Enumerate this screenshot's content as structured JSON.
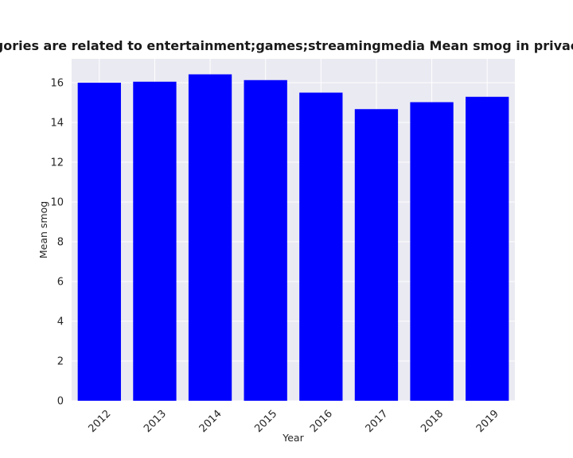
{
  "chart_data": {
    "type": "bar",
    "title": "categories are related to entertainment;games;streamingmedia Mean smog in privacy policies",
    "xlabel": "Year",
    "ylabel": "Mean smog",
    "categories": [
      "2012",
      "2013",
      "2014",
      "2015",
      "2016",
      "2017",
      "2018",
      "2019"
    ],
    "values": [
      16.0,
      16.05,
      16.42,
      16.13,
      15.5,
      14.67,
      15.02,
      15.29
    ],
    "ylim": [
      0,
      17.2
    ],
    "yticks": [
      0,
      2,
      4,
      6,
      8,
      10,
      12,
      14,
      16
    ],
    "grid": true,
    "legend": "none",
    "colors": {
      "bar": "#0000ff",
      "plot_background": "#eaeaf2",
      "grid": "#ffffff"
    }
  }
}
